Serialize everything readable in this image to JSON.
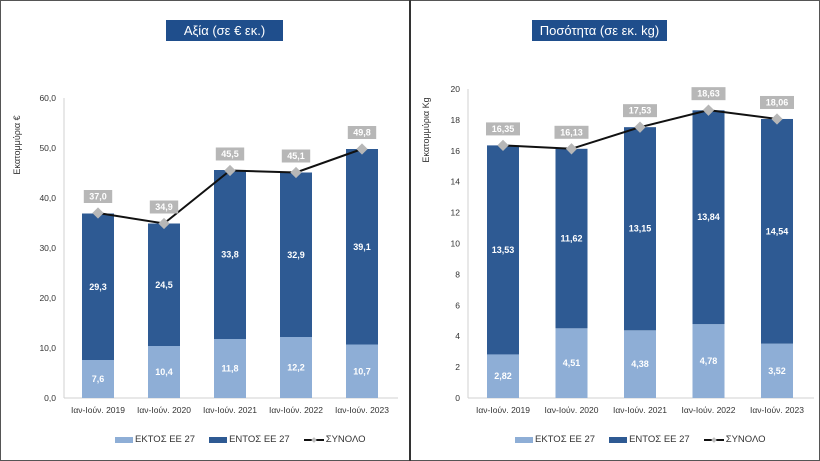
{
  "colors": {
    "outside_eu": "#8eaed6",
    "inside_eu": "#2e5a93",
    "total_line": "#111111",
    "marker": "#b7b7b7",
    "title_bg": "#1f4e8c"
  },
  "chart_data": [
    {
      "type": "bar",
      "stacked": true,
      "title": "Αξία (σε € εκ.)",
      "ylabel": "Εκατομμύρια €",
      "xlabel": "",
      "ylim": [
        0,
        60
      ],
      "yticks": [
        0,
        10,
        20,
        30,
        40,
        50,
        60
      ],
      "ytick_labels": [
        "0,0",
        "10,0",
        "20,0",
        "30,0",
        "40,0",
        "50,0",
        "60,0"
      ],
      "categories": [
        "Ιαν-Ιούν. 2019",
        "Ιαν-Ιούν. 2020",
        "Ιαν-Ιούν. 2021",
        "Ιαν-Ιούν. 2022",
        "Ιαν-Ιούν. 2023"
      ],
      "series": [
        {
          "name": "ΕΚΤΟΣ ΕΕ 27",
          "values": [
            7.6,
            10.4,
            11.8,
            12.2,
            10.7
          ],
          "labels": [
            "7,6",
            "10,4",
            "11,8",
            "12,2",
            "10,7"
          ]
        },
        {
          "name": "ΕΝΤΟΣ ΕΕ 27",
          "values": [
            29.3,
            24.5,
            33.8,
            32.9,
            39.1
          ],
          "labels": [
            "29,3",
            "24,5",
            "33,8",
            "32,9",
            "39,1"
          ]
        },
        {
          "name": "ΣΥΝΟΛΟ",
          "type": "line",
          "values": [
            37.0,
            34.9,
            45.5,
            45.1,
            49.8
          ],
          "labels": [
            "37,0",
            "34,9",
            "45,5",
            "45,1",
            "49,8"
          ]
        }
      ],
      "legend": "bottom",
      "grid": false
    },
    {
      "type": "bar",
      "stacked": true,
      "title": "Ποσότητα (σε εκ. kg)",
      "ylabel": "Εκατομμύρια Kg",
      "xlabel": "",
      "ylim": [
        0,
        20
      ],
      "yticks": [
        0,
        2,
        4,
        6,
        8,
        10,
        12,
        14,
        16,
        18,
        20
      ],
      "ytick_labels": [
        "0",
        "2",
        "4",
        "6",
        "8",
        "10",
        "12",
        "14",
        "16",
        "18",
        "20"
      ],
      "categories": [
        "Ιαν-Ιούν. 2019",
        "Ιαν-Ιούν. 2020",
        "Ιαν-Ιούν. 2021",
        "Ιαν-Ιούν. 2022",
        "Ιαν-Ιούν. 2023"
      ],
      "series": [
        {
          "name": "ΕΚΤΟΣ ΕΕ 27",
          "values": [
            2.82,
            4.51,
            4.38,
            4.78,
            3.52
          ],
          "labels": [
            "2,82",
            "4,51",
            "4,38",
            "4,78",
            "3,52"
          ]
        },
        {
          "name": "ΕΝΤΟΣ ΕΕ 27",
          "values": [
            13.53,
            11.62,
            13.15,
            13.84,
            14.54
          ],
          "labels": [
            "13,53",
            "11,62",
            "13,15",
            "13,84",
            "14,54"
          ]
        },
        {
          "name": "ΣΥΝΟΛΟ",
          "type": "line",
          "values": [
            16.35,
            16.13,
            17.53,
            18.63,
            18.06
          ],
          "labels": [
            "16,35",
            "16,13",
            "17,53",
            "18,63",
            "18,06"
          ]
        }
      ],
      "legend": "bottom",
      "grid": false
    }
  ]
}
